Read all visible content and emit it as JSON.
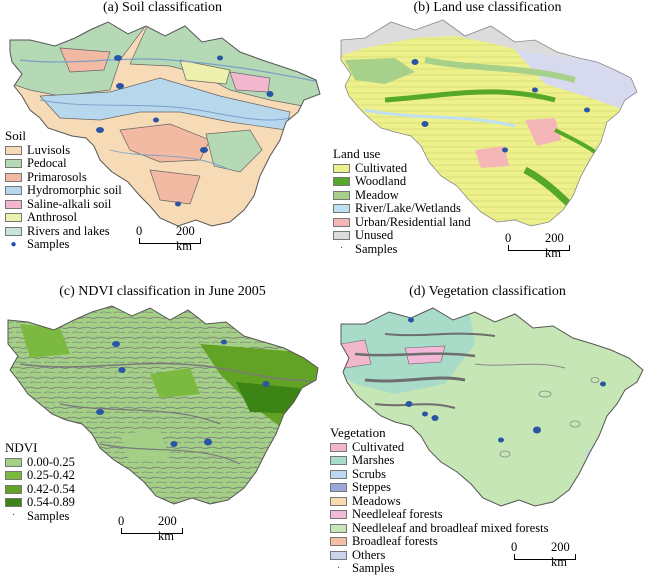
{
  "panels": {
    "a": {
      "title": "(a) Soil classification",
      "legend_title": "Soil",
      "items": [
        {
          "label": "Luvisols",
          "color": "#f7dbb6"
        },
        {
          "label": "Pedocal",
          "color": "#b5d9b5"
        },
        {
          "label": "Primarosols",
          "color": "#f2b9a3"
        },
        {
          "label": "Hydromorphic soil",
          "color": "#b7d8ec"
        },
        {
          "label": "Saline-alkali soil",
          "color": "#f3b6cf"
        },
        {
          "label": "Anthrosol",
          "color": "#eef0ae"
        },
        {
          "label": "Rivers and lakes",
          "color": "#c8e5d8"
        }
      ],
      "samples_label": "Samples",
      "scale": {
        "zero": "0",
        "dist": "200 km"
      }
    },
    "b": {
      "title": "(b) Land use classification",
      "legend_title": "Land use",
      "items": [
        {
          "label": "Cultivated",
          "color": "#eef08c"
        },
        {
          "label": "Woodland",
          "color": "#55a82a"
        },
        {
          "label": "Meadow",
          "color": "#a7d08a"
        },
        {
          "label": "River/Lake/Wetlands",
          "color": "#bfe0f2"
        },
        {
          "label": "Urban/Residential land",
          "color": "#f4b6b6"
        },
        {
          "label": "Unused",
          "color": "#dcdcdc"
        }
      ],
      "samples_label": "Samples",
      "scale": {
        "zero": "0",
        "dist": "200 km"
      }
    },
    "c": {
      "title": "(c) NDVI classification in June 2005",
      "legend_title": "NDVI",
      "items": [
        {
          "label": "0.00-0.25",
          "color": "#a3cf86"
        },
        {
          "label": "0.25-0.42",
          "color": "#7cb940"
        },
        {
          "label": "0.42-0.54",
          "color": "#62a224"
        },
        {
          "label": "0.54-0.89",
          "color": "#3d8416"
        }
      ],
      "samples_label": "Samples",
      "scale": {
        "zero": "0",
        "dist": "200 km"
      }
    },
    "d": {
      "title": "(d) Vegetation classification",
      "legend_title": "Vegetation",
      "items": [
        {
          "label": "Cultivated",
          "color": "#f3b7cc"
        },
        {
          "label": "Marshes",
          "color": "#a8dcc8"
        },
        {
          "label": "Scrubs",
          "color": "#bcd7ef"
        },
        {
          "label": "Steppes",
          "color": "#9aa9d8"
        },
        {
          "label": "Meadows",
          "color": "#f6dcae"
        },
        {
          "label": "Needleleaf forests",
          "color": "#f1b8d8"
        },
        {
          "label": "Needleleaf and broadleaf mixed forests",
          "color": "#c7e6b5"
        },
        {
          "label": "Broadleaf forests",
          "color": "#f4c0a5"
        },
        {
          "label": "Others",
          "color": "#c9d5ea"
        }
      ],
      "samples_label": "Samples",
      "scale": {
        "zero": "0",
        "dist": "200 km"
      }
    }
  },
  "sample_color": "#2a55a5",
  "border_color": "#555555"
}
